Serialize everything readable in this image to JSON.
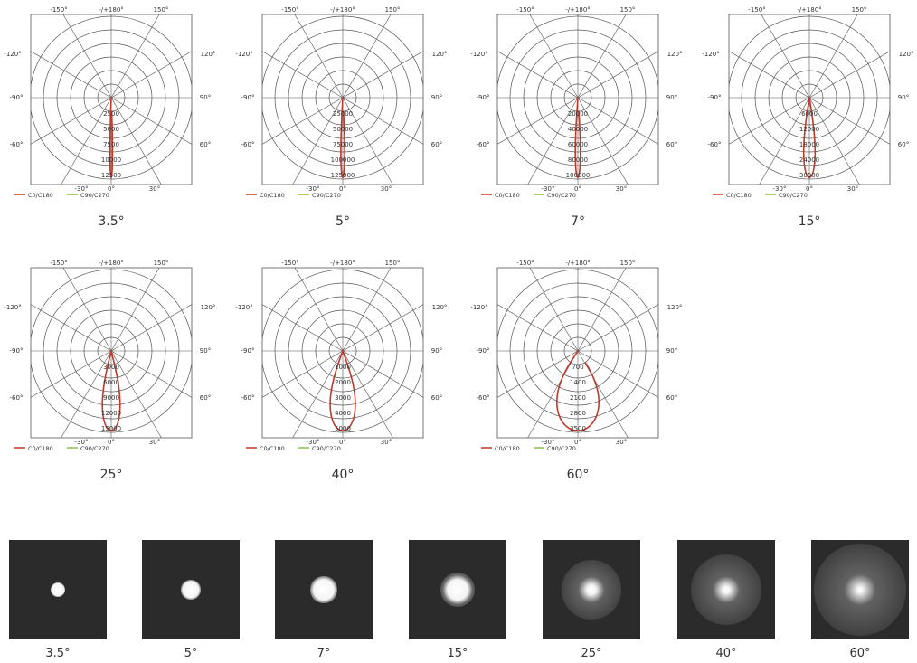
{
  "chart_data": [
    {
      "type": "polar",
      "beam_label": "3.5°",
      "outer_angle_labels": [
        "-150°",
        "-/+180°",
        "150°",
        "-120°",
        "120°",
        "-90°",
        "90°",
        "-60°",
        "60°",
        "-30°",
        "0°",
        "30°"
      ],
      "radial_labels": [
        "2500",
        "5000",
        "7500",
        "10000",
        "12500"
      ],
      "legend": [
        {
          "name": "C0/C180",
          "color": "#c0392b"
        },
        {
          "name": "C90/C270",
          "color": "#8fbc4a"
        }
      ],
      "curve": {
        "half_angle_deg": 2.0,
        "intensity_fraction": 1.0
      }
    },
    {
      "type": "polar",
      "beam_label": "5°",
      "outer_angle_labels": [
        "-150°",
        "-/+180°",
        "150°",
        "-120°",
        "120°",
        "-90°",
        "90°",
        "-60°",
        "60°",
        "-30°",
        "0°",
        "30°"
      ],
      "radial_labels": [
        "25000",
        "50000",
        "75000",
        "100000",
        "125000"
      ],
      "legend": [
        {
          "name": "C0/C180",
          "color": "#c0392b"
        },
        {
          "name": "C90/C270",
          "color": "#8fbc4a"
        }
      ],
      "curve": {
        "half_angle_deg": 3.0,
        "intensity_fraction": 1.0
      }
    },
    {
      "type": "polar",
      "beam_label": "7°",
      "outer_angle_labels": [
        "-150°",
        "-/+180°",
        "150°",
        "-120°",
        "120°",
        "-90°",
        "90°",
        "-60°",
        "60°",
        "-30°",
        "0°",
        "30°"
      ],
      "radial_labels": [
        "20000",
        "40000",
        "60000",
        "80000",
        "100000"
      ],
      "legend": [
        {
          "name": "C0/C180",
          "color": "#c0392b"
        },
        {
          "name": "C90/C270",
          "color": "#8fbc4a"
        }
      ],
      "curve": {
        "half_angle_deg": 4.0,
        "intensity_fraction": 1.0
      }
    },
    {
      "type": "polar",
      "beam_label": "15°",
      "outer_angle_labels": [
        "-150°",
        "-/+180°",
        "150°",
        "-120°",
        "120°",
        "-90°",
        "90°",
        "-60°",
        "60°",
        "-30°",
        "0°",
        "30°"
      ],
      "radial_labels": [
        "6000",
        "12000",
        "18000",
        "24000",
        "30000"
      ],
      "legend": [
        {
          "name": "C0/C180",
          "color": "#c0392b"
        },
        {
          "name": "C90/C270",
          "color": "#8fbc4a"
        }
      ],
      "curve": {
        "half_angle_deg": 9.0,
        "intensity_fraction": 1.0
      }
    },
    {
      "type": "polar",
      "beam_label": "25°",
      "outer_angle_labels": [
        "-150°",
        "-/+180°",
        "150°",
        "-120°",
        "120°",
        "-90°",
        "90°",
        "-60°",
        "60°",
        "-30°",
        "0°",
        "30°"
      ],
      "radial_labels": [
        "3000",
        "6000",
        "9000",
        "12000",
        "15000"
      ],
      "legend": [
        {
          "name": "C0/C180",
          "color": "#c0392b"
        },
        {
          "name": "C90/C270",
          "color": "#8fbc4a"
        }
      ],
      "curve": {
        "half_angle_deg": 14.0,
        "intensity_fraction": 1.0
      }
    },
    {
      "type": "polar",
      "beam_label": "40°",
      "outer_angle_labels": [
        "-150°",
        "-/+180°",
        "150°",
        "-120°",
        "120°",
        "-90°",
        "90°",
        "-60°",
        "60°",
        "-30°",
        "0°",
        "30°"
      ],
      "radial_labels": [
        "1000",
        "2000",
        "3000",
        "4000",
        "5000"
      ],
      "legend": [
        {
          "name": "C0/C180",
          "color": "#c0392b"
        },
        {
          "name": "C90/C270",
          "color": "#8fbc4a"
        }
      ],
      "curve": {
        "half_angle_deg": 20.0,
        "intensity_fraction": 1.0
      }
    },
    {
      "type": "polar",
      "beam_label": "60°",
      "outer_angle_labels": [
        "-150°",
        "-/+180°",
        "150°",
        "-120°",
        "120°",
        "-90°",
        "90°",
        "-60°",
        "60°",
        "-30°",
        "0°",
        "30°"
      ],
      "radial_labels": [
        "700",
        "1400",
        "2100",
        "2800",
        "3500"
      ],
      "legend": [
        {
          "name": "C0/C180",
          "color": "#c0392b"
        },
        {
          "name": "C90/C270",
          "color": "#8fbc4a"
        }
      ],
      "curve": {
        "half_angle_deg": 34.0,
        "intensity_fraction": 1.0
      }
    }
  ],
  "spots": [
    {
      "label": "3.5°",
      "diameter_fraction": 0.15,
      "sharpness": 0.85
    },
    {
      "label": "5°",
      "diameter_fraction": 0.2,
      "sharpness": 0.8
    },
    {
      "label": "7°",
      "diameter_fraction": 0.27,
      "sharpness": 0.75
    },
    {
      "label": "15°",
      "diameter_fraction": 0.36,
      "sharpness": 0.6
    },
    {
      "label": "25°",
      "diameter_fraction": 0.62,
      "sharpness": 0.15
    },
    {
      "label": "40°",
      "diameter_fraction": 0.72,
      "sharpness": 0.1
    },
    {
      "label": "60°",
      "diameter_fraction": 0.95,
      "sharpness": 0.05
    }
  ]
}
